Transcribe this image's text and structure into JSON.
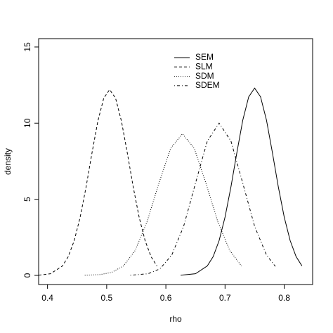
{
  "chart_data": {
    "type": "line",
    "x_label": "rho",
    "y_label": "density",
    "xlim": [
      0.385,
      0.848
    ],
    "ylim": [
      -0.6,
      15.55
    ],
    "xticks": [
      0.4,
      0.5,
      0.6,
      0.7,
      0.8
    ],
    "yticks": [
      0,
      5,
      10,
      15
    ],
    "legend": "top",
    "series": [
      {
        "name": "SEM",
        "color": "#000000",
        "dash": "solid",
        "x": [
          0.625,
          0.65,
          0.67,
          0.68,
          0.69,
          0.7,
          0.71,
          0.72,
          0.73,
          0.74,
          0.75,
          0.76,
          0.77,
          0.78,
          0.79,
          0.8,
          0.81,
          0.82,
          0.83
        ],
        "values": [
          0.01,
          0.11,
          0.62,
          1.24,
          2.29,
          3.83,
          5.82,
          8.07,
          10.2,
          11.73,
          12.3,
          11.73,
          10.2,
          8.07,
          5.82,
          3.83,
          2.29,
          1.24,
          0.62
        ]
      },
      {
        "name": "SLM",
        "color": "#000000",
        "dash": "dashed",
        "x": [
          0.385,
          0.405,
          0.425,
          0.435,
          0.445,
          0.455,
          0.465,
          0.475,
          0.485,
          0.495,
          0.505,
          0.515,
          0.525,
          0.535,
          0.545,
          0.555,
          0.565,
          0.575,
          0.585
        ],
        "values": [
          0.01,
          0.11,
          0.61,
          1.23,
          2.27,
          3.79,
          5.77,
          8.01,
          10.12,
          11.64,
          12.2,
          11.64,
          10.12,
          8.01,
          5.77,
          3.79,
          2.27,
          1.23,
          0.61
        ]
      },
      {
        "name": "SDM",
        "color": "#000000",
        "dash": "dotted",
        "x": [
          0.463,
          0.488,
          0.508,
          0.528,
          0.548,
          0.568,
          0.588,
          0.608,
          0.628,
          0.648,
          0.668,
          0.688,
          0.708,
          0.728
        ],
        "values": [
          0.01,
          0.05,
          0.19,
          0.61,
          1.63,
          3.5,
          6.02,
          8.34,
          9.3,
          8.34,
          6.02,
          3.5,
          1.63,
          0.61
        ]
      },
      {
        "name": "SDEM",
        "color": "#000000",
        "dash": "dotdash",
        "x": [
          0.54,
          0.57,
          0.59,
          0.61,
          0.63,
          0.65,
          0.67,
          0.69,
          0.71,
          0.73,
          0.75,
          0.77,
          0.785
        ],
        "values": [
          0.01,
          0.11,
          0.43,
          1.34,
          3.22,
          6.05,
          8.82,
          10,
          8.82,
          6.05,
          3.22,
          1.34,
          0.59
        ]
      }
    ]
  }
}
